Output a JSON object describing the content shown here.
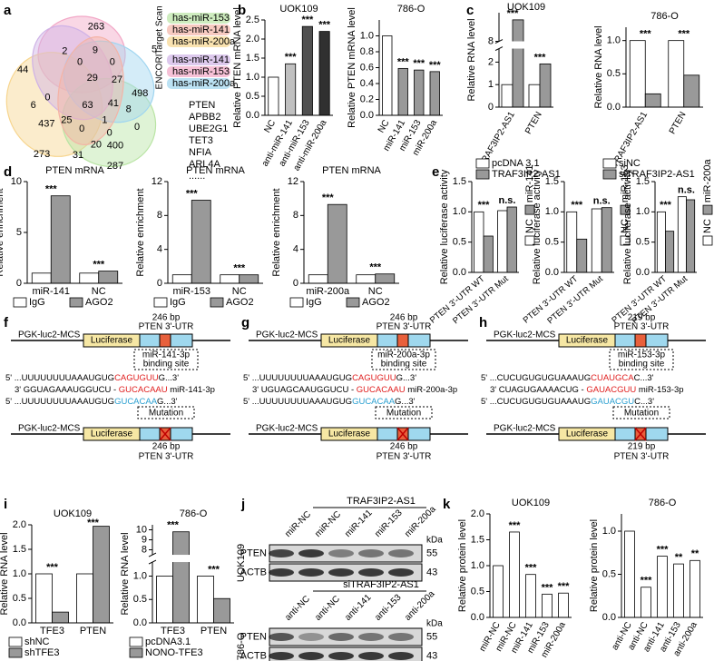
{
  "panel_letters": [
    "a",
    "b",
    "c",
    "d",
    "e",
    "f",
    "g",
    "h",
    "i",
    "j",
    "k"
  ],
  "venn": {
    "counts": [
      263,
      2,
      9,
      5,
      0,
      0,
      44,
      29,
      27,
      498,
      6,
      0,
      63,
      41,
      8,
      437,
      25,
      1,
      0,
      0,
      0,
      20,
      400,
      273,
      31,
      287
    ],
    "sources": [
      {
        "name": "Target Scan",
        "mirnas": [
          "has-miR-153",
          "has-miR-141",
          "has-miR-200a"
        ],
        "colors": [
          "#b9e4a4",
          "#f4b3a6",
          "#f7d58e"
        ]
      },
      {
        "name": "ENCORI",
        "mirnas": [
          "has-miR-141",
          "has-miR-153",
          "has-miR-200a"
        ],
        "colors": [
          "#cfb2e6",
          "#f2a7c6",
          "#9fd5f0"
        ]
      }
    ],
    "genes": [
      {
        "name": "PTEN",
        "color": "#e00000"
      },
      {
        "name": "APBB2",
        "color": "#000000"
      },
      {
        "name": "UBE2G1",
        "color": "#000000"
      },
      {
        "name": "TET3",
        "color": "#000000"
      },
      {
        "name": "NFIA",
        "color": "#000000"
      },
      {
        "name": "ARL4A",
        "color": "#000000"
      },
      {
        "name": "......",
        "color": "#000000"
      }
    ]
  },
  "chart_data": [
    {
      "type": "bar",
      "title": "UOK109",
      "ylabel": "Relative PTEN mRNA level",
      "categories": [
        "NC",
        "anti-miR-141",
        "anti-miR-153",
        "anti-miR-200a"
      ],
      "values": [
        1.0,
        1.35,
        2.33,
        2.2
      ],
      "colors": [
        "#ffffff",
        "#c0c0c0",
        "#505050",
        "#303030"
      ],
      "sig": [
        null,
        "***",
        "***",
        "***"
      ],
      "ylim": [
        0,
        2.5
      ],
      "yticks": [
        {
          "value": 0,
          "label": "0.0"
        },
        {
          "value": 0.5,
          "label": "0.5"
        },
        {
          "value": 1,
          "label": "1.0"
        },
        {
          "value": 1.5,
          "label": "1.5"
        },
        {
          "value": 2,
          "label": "2.0"
        },
        {
          "value": 2.5,
          "label": "2.5"
        }
      ],
      "label_angle": -60
    },
    {
      "type": "bar",
      "title": "786-O",
      "ylabel": "Relative PTEN mRNA level",
      "categories": [
        "NC",
        "miR-141",
        "miR-153",
        "miR-200a"
      ],
      "values": [
        1.0,
        0.59,
        0.57,
        0.55
      ],
      "colors": [
        "#ffffff",
        "#999999",
        "#999999",
        "#999999"
      ],
      "sig": [
        null,
        "***",
        "***",
        "***"
      ],
      "ylim": [
        0,
        1.2
      ],
      "yticks": [
        {
          "value": 0,
          "label": "0.0"
        },
        {
          "value": 0.2,
          "label": "0.2"
        },
        {
          "value": 0.4,
          "label": "0.4"
        },
        {
          "value": 0.6,
          "label": "0.6"
        },
        {
          "value": 0.8,
          "label": "0.8"
        },
        {
          "value": 1,
          "label": "1.0"
        }
      ],
      "label_angle": -60
    },
    {
      "type": "bar",
      "title": "UOK109",
      "ylabel": "Relative RNA level",
      "categories": [
        "TRAF3IP2-AS1",
        "PTEN"
      ],
      "series": [
        {
          "name": "pcDNA 3.1",
          "color": "#ffffff",
          "values": [
            1,
            1
          ]
        },
        {
          "name": "TRAF3IP2-AS1",
          "color": "#999999",
          "values": [
            9.5,
            1.92
          ]
        }
      ],
      "sig": [
        "***",
        "***"
      ],
      "ylim": [
        0,
        10
      ],
      "ybreak": [
        2.6,
        8
      ],
      "yticks": [
        0,
        1,
        2,
        8
      ],
      "label_angle": -60,
      "legend": "bottom"
    },
    {
      "type": "bar",
      "title": "786-O",
      "ylabel": "Relative RNA level",
      "categories": [
        "TRAF3IP2-AS1",
        "PTEN"
      ],
      "series": [
        {
          "name": "siNC",
          "color": "#ffffff",
          "values": [
            1,
            1
          ]
        },
        {
          "name": "siTRAF3IP2-AS1",
          "color": "#999999",
          "values": [
            0.2,
            0.48
          ]
        }
      ],
      "sig": [
        "***",
        "***"
      ],
      "ylim": [
        0,
        1.2
      ],
      "yticks": [
        {
          "value": 0,
          "label": "0.0"
        },
        {
          "value": 0.5,
          "label": "0.5"
        },
        {
          "value": 1,
          "label": "1.0"
        }
      ],
      "label_angle": -60,
      "legend": "bottom"
    },
    {
      "type": "bar",
      "title": "PTEN mRNA",
      "ylabel": "Relative enrichment",
      "categories": [
        "miR-141",
        "NC"
      ],
      "series": [
        {
          "name": "IgG",
          "color": "#ffffff",
          "values": [
            1,
            1
          ]
        },
        {
          "name": "AGO2",
          "color": "#999999",
          "values": [
            8.6,
            1.2
          ]
        }
      ],
      "sig": [
        "***",
        "***"
      ],
      "ylim": [
        0,
        10
      ],
      "yticks": [
        0,
        5,
        10
      ],
      "legend": "bottom"
    },
    {
      "type": "bar",
      "title": "PTEN mRNA",
      "ylabel": "Relative enrichment",
      "categories": [
        "miR-153",
        "NC"
      ],
      "series": [
        {
          "name": "IgG",
          "color": "#ffffff",
          "values": [
            1,
            1
          ]
        },
        {
          "name": "AGO2",
          "color": "#999999",
          "values": [
            9.8,
            1.0
          ]
        }
      ],
      "sig": [
        "***",
        "***"
      ],
      "ylim": [
        0,
        12
      ],
      "yticks": [
        0,
        4,
        8,
        12
      ],
      "legend": "bottom"
    },
    {
      "type": "bar",
      "title": "PTEN mRNA",
      "ylabel": "Relative enrichment",
      "categories": [
        "miR-200a",
        "NC"
      ],
      "series": [
        {
          "name": "IgG",
          "color": "#ffffff",
          "values": [
            1,
            1
          ]
        },
        {
          "name": "AGO2",
          "color": "#999999",
          "values": [
            9.3,
            1.1
          ]
        }
      ],
      "sig": [
        "***",
        "***"
      ],
      "ylim": [
        0,
        12
      ],
      "yticks": [
        0,
        4,
        8,
        12
      ],
      "legend": "bottom"
    },
    {
      "type": "bar",
      "ylabel": "Relative luciferase activity",
      "categories": [
        "PTEN 3'-UTR WT",
        "PTEN 3'-UTR Mut"
      ],
      "series": [
        {
          "name": "NC",
          "color": "#ffffff",
          "values": [
            1.0,
            1.02
          ]
        },
        {
          "name": "miR-141",
          "color": "#999999",
          "values": [
            0.6,
            1.08
          ]
        }
      ],
      "sig": [
        "***",
        "n.s."
      ],
      "ylim": [
        0,
        1.5
      ],
      "yticks": [
        {
          "value": 0,
          "label": "0.0"
        },
        {
          "value": 0.5,
          "label": "0.5"
        },
        {
          "value": 1,
          "label": "1.0"
        },
        {
          "value": 1.5,
          "label": "1.5"
        }
      ],
      "label_angle": -40,
      "legend": "right"
    },
    {
      "type": "bar",
      "ylabel": "Relative luciferase activity",
      "categories": [
        "PTEN 3'-UTR WT",
        "PTEN 3'-UTR Mut"
      ],
      "series": [
        {
          "name": "NC",
          "color": "#ffffff",
          "values": [
            1.0,
            1.05
          ]
        },
        {
          "name": "miR-153",
          "color": "#999999",
          "values": [
            0.55,
            1.07
          ]
        }
      ],
      "sig": [
        "***",
        "n.s."
      ],
      "ylim": [
        0,
        1.5
      ],
      "yticks": [
        {
          "value": 0,
          "label": "0.0"
        },
        {
          "value": 0.5,
          "label": "0.5"
        },
        {
          "value": 1,
          "label": "1.0"
        },
        {
          "value": 1.5,
          "label": "1.5"
        }
      ],
      "label_angle": -40,
      "legend": "right"
    },
    {
      "type": "bar",
      "ylabel": "Relative luciferase activity",
      "categories": [
        "PTEN 3'-UTR WT",
        "PTEN 3'-UTR Mut"
      ],
      "series": [
        {
          "name": "NC",
          "color": "#ffffff",
          "values": [
            1.0,
            1.25
          ]
        },
        {
          "name": "miR-200a",
          "color": "#999999",
          "values": [
            0.68,
            1.2
          ]
        }
      ],
      "sig": [
        "***",
        "n.s."
      ],
      "ylim": [
        0,
        1.5
      ],
      "yticks": [
        {
          "value": 0,
          "label": "0.0"
        },
        {
          "value": 0.5,
          "label": "0.5"
        },
        {
          "value": 1,
          "label": "1.0"
        },
        {
          "value": 1.5,
          "label": "1.5"
        }
      ],
      "label_angle": -40,
      "legend": "right"
    },
    {
      "type": "bar",
      "title": "UOK109",
      "ylabel": "Relative RNA level",
      "categories": [
        "TFE3",
        "PTEN"
      ],
      "series": [
        {
          "name": "shNC",
          "color": "#ffffff",
          "values": [
            1,
            1
          ]
        },
        {
          "name": "shTFE3",
          "color": "#999999",
          "values": [
            0.22,
            1.97
          ]
        }
      ],
      "sig": [
        "***",
        "***"
      ],
      "ylim": [
        0,
        2
      ],
      "yticks": [
        {
          "value": 0,
          "label": "0.0"
        },
        {
          "value": 0.5,
          "label": "0.5"
        },
        {
          "value": 1,
          "label": "1.0"
        },
        {
          "value": 1.5,
          "label": "1.5"
        },
        {
          "value": 2,
          "label": "2.0"
        }
      ],
      "legend": "bottom"
    },
    {
      "type": "bar",
      "title": "786-O",
      "ylabel": "Relative RNA level",
      "categories": [
        "TFE3",
        "PTEN"
      ],
      "series": [
        {
          "name": "pcDNA3.1",
          "color": "#ffffff",
          "values": [
            1,
            1
          ]
        },
        {
          "name": "NONO-TFE3",
          "color": "#999999",
          "values": [
            9.8,
            0.52
          ]
        }
      ],
      "sig": [
        "***",
        "***"
      ],
      "ylim": [
        0,
        10.5
      ],
      "ybreak": [
        1.3,
        7.5
      ],
      "yticks": [
        {
          "value": 0,
          "label": "0.0"
        },
        {
          "value": 0.5,
          "label": "0.5"
        },
        {
          "value": 1,
          "label": "1.0"
        },
        8,
        9,
        10
      ],
      "legend": "bottom"
    },
    {
      "type": "bar",
      "title": "UOK109",
      "ylabel": "Relative protein level",
      "categories": [
        "miR-NC",
        "miR-NC",
        "miR-141",
        "miR-153",
        "miR-200a"
      ],
      "values": [
        1.0,
        1.65,
        0.83,
        0.45,
        0.47
      ],
      "colors": [
        "#ffffff",
        "#ffffff",
        "#ffffff",
        "#ffffff",
        "#ffffff"
      ],
      "sig": [
        null,
        "***",
        "***",
        "***",
        "***"
      ],
      "ylim": [
        0,
        2
      ],
      "yticks": [
        {
          "value": 0,
          "label": "0.0"
        },
        {
          "value": 0.5,
          "label": "0.5"
        },
        {
          "value": 1,
          "label": "1.0"
        },
        {
          "value": 1.5,
          "label": "1.5"
        },
        {
          "value": 2,
          "label": "2.0"
        }
      ],
      "label_angle": -60
    },
    {
      "type": "bar",
      "title": "786-O",
      "ylabel": "Relative protein level",
      "categories": [
        "anti-NC",
        "anti-NC",
        "anti-141",
        "anti-153",
        "anti-200a"
      ],
      "values": [
        1.0,
        0.35,
        0.71,
        0.62,
        0.66
      ],
      "colors": [
        "#ffffff",
        "#ffffff",
        "#ffffff",
        "#ffffff",
        "#ffffff"
      ],
      "sig": [
        null,
        "***",
        "***",
        "**",
        "**"
      ],
      "ylim": [
        0,
        1.2
      ],
      "yticks": [
        {
          "value": 0,
          "label": "0.0"
        },
        {
          "value": 0.5,
          "label": "0.5"
        },
        {
          "value": 1,
          "label": "1.0"
        }
      ],
      "label_angle": -60
    }
  ],
  "constructs": [
    {
      "vector": "PGK-luc2-MCS",
      "reporter": "Luciferase",
      "length": "246 bp",
      "utr": "PTEN 3'-UTR",
      "site": [
        "miR-141-3p",
        "binding site"
      ],
      "sequences": [
        {
          "parts": [
            "5' ...UUUUUUUUAAAUGUG",
            "CAGUGUU",
            "G...3'"
          ],
          "colors": [
            "#000000",
            "#e02020",
            "#000000"
          ]
        },
        {
          "parts": [
            "3'  GGUAGAAAUGGUCU - ",
            "GUCACAAU",
            "  miR-141-3p"
          ],
          "colors": [
            "#000000",
            "#e02020",
            "#000000"
          ]
        },
        {
          "parts": [
            "5' ...UUUUUUUUAAAUGUG",
            "GUCACAA",
            "G...3'"
          ],
          "colors": [
            "#000000",
            "#2a9fd0",
            "#000000"
          ]
        }
      ],
      "mutation": "Mutation",
      "vector_mut": "PGK-luc2-MCS",
      "reporter_mut": "Luciferase",
      "length_mut": "246 bp",
      "utr_mut": "PTEN 3'-UTR"
    },
    {
      "vector": "PGK-luc2-MCS",
      "reporter": "Luciferase",
      "length": "246 bp",
      "utr": "PTEN 3'-UTR",
      "site": [
        "miR-200a-3p",
        "binding site"
      ],
      "sequences": [
        {
          "parts": [
            "5' ...UUUUUUUUAAAUGUG",
            "CAGUGUU",
            "G...3'"
          ],
          "colors": [
            "#000000",
            "#e02020",
            "#000000"
          ]
        },
        {
          "parts": [
            "3'  UGUAGCAAUGGUCU - ",
            "GUCACAAU",
            "  miR-200a-3p"
          ],
          "colors": [
            "#000000",
            "#e02020",
            "#000000"
          ]
        },
        {
          "parts": [
            "5' ...UUUUUUUUAAAUGUG",
            "GUCACAA",
            "G...3'"
          ],
          "colors": [
            "#000000",
            "#2a9fd0",
            "#000000"
          ]
        }
      ],
      "mutation": "Mutation",
      "vector_mut": "PGK-luc2-MCS",
      "reporter_mut": "Luciferase",
      "length_mut": "246 bp",
      "utr_mut": "PTEN 3'-UTR"
    },
    {
      "vector": "PGK-luc2-MCS",
      "reporter": "Luciferase",
      "length": "219 bp",
      "utr": "PTEN 3'-UTR",
      "site": [
        "miR-153-3p",
        "binding site"
      ],
      "sequences": [
        {
          "parts": [
            "5' ...CUCUGUGUGUAAAUG",
            "CUAUGCA",
            "C...3'"
          ],
          "colors": [
            "#000000",
            "#e02020",
            "#000000"
          ]
        },
        {
          "parts": [
            "3'  CUAGUGAAAACUG - ",
            "GAUACGUU",
            "  miR-153-3p"
          ],
          "colors": [
            "#000000",
            "#e02020",
            "#000000"
          ]
        },
        {
          "parts": [
            "5' ...CUCUGUGUGUAAAUG",
            "GAUACGU",
            "C...3'"
          ],
          "colors": [
            "#000000",
            "#2a9fd0",
            "#000000"
          ]
        }
      ],
      "mutation": "Mutation",
      "vector_mut": "PGK-luc2-MCS",
      "reporter_mut": "Luciferase",
      "length_mut": "219 bp",
      "utr_mut": "PTEN 3'-UTR"
    }
  ],
  "blots": [
    {
      "group": "TRAF3IP2-AS1",
      "lanes": [
        "miR-NC",
        "miR-NC",
        "miR-141",
        "miR-153",
        "miR-200a"
      ],
      "unit": "kDa",
      "cell": "UOK109",
      "proteins": [
        {
          "name": "PTEN",
          "kda": 55
        },
        {
          "name": "ACTB",
          "kda": 43
        }
      ]
    },
    {
      "group": "siTRAF3IP2-AS1",
      "lanes": [
        "anti-NC",
        "anti-NC",
        "anti-141",
        "anti-153",
        "anti-200a"
      ],
      "unit": "kDa",
      "cell": "786-O",
      "proteins": [
        {
          "name": "PTEN",
          "kda": 55
        },
        {
          "name": "ACTB",
          "kda": 43
        }
      ]
    }
  ]
}
